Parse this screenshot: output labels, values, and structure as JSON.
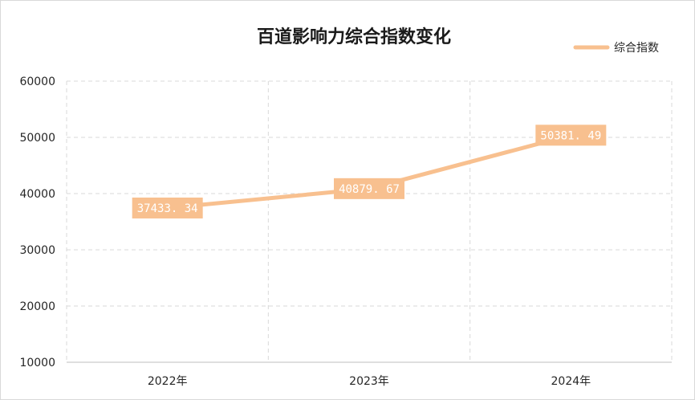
{
  "chart_data": {
    "type": "line",
    "title": "百道影响力综合指数变化",
    "categories": [
      "2022年",
      "2023年",
      "2024年"
    ],
    "series": [
      {
        "name": "综合指数",
        "values": [
          37433.34,
          40879.67,
          50381.49
        ],
        "labels": [
          "37433. 34",
          "40879. 67",
          "50381. 49"
        ]
      }
    ],
    "ylim": [
      10000,
      60000
    ],
    "yticks": [
      "60000",
      "50000",
      "40000",
      "30000",
      "20000",
      "10000"
    ],
    "grid": true,
    "legend": "top-right",
    "colors": {
      "series": "#f8c08f",
      "grid": "#d9d9d9",
      "axis": "#bfbfbf"
    }
  }
}
